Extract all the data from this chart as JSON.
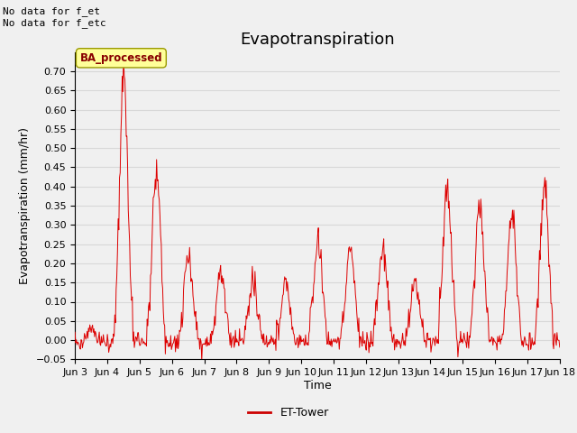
{
  "title": "Evapotranspiration",
  "ylabel": "Evapotranspiration (mm/hr)",
  "xlabel": "Time",
  "top_left_text": "No data for f_et\nNo data for f_etc",
  "legend_label": "ET-Tower",
  "legend_line_color": "#cc0000",
  "box_label": "BA_processed",
  "box_facecolor": "#ffff99",
  "box_edgecolor": "#999900",
  "box_text_color": "#880000",
  "line_color": "#dd0000",
  "background_color": "#f0f0f0",
  "plot_bg_color": "#f0f0f0",
  "grid_color": "#d8d8d8",
  "ylim": [
    -0.05,
    0.75
  ],
  "yticks": [
    -0.05,
    0.0,
    0.05,
    0.1,
    0.15,
    0.2,
    0.25,
    0.3,
    0.35,
    0.4,
    0.45,
    0.5,
    0.55,
    0.6,
    0.65,
    0.7
  ],
  "xtick_labels": [
    "Jun 3",
    "Jun 4",
    "Jun 5",
    "Jun 6",
    "Jun 7",
    "Jun 8",
    "Jun 9",
    "Jun 10",
    "Jun 11",
    "Jun 12",
    "Jun 13",
    "Jun 14",
    "Jun 15",
    "Jun 16",
    "Jun 17",
    "Jun 18"
  ],
  "title_fontsize": 13,
  "axis_fontsize": 9,
  "tick_fontsize": 8
}
